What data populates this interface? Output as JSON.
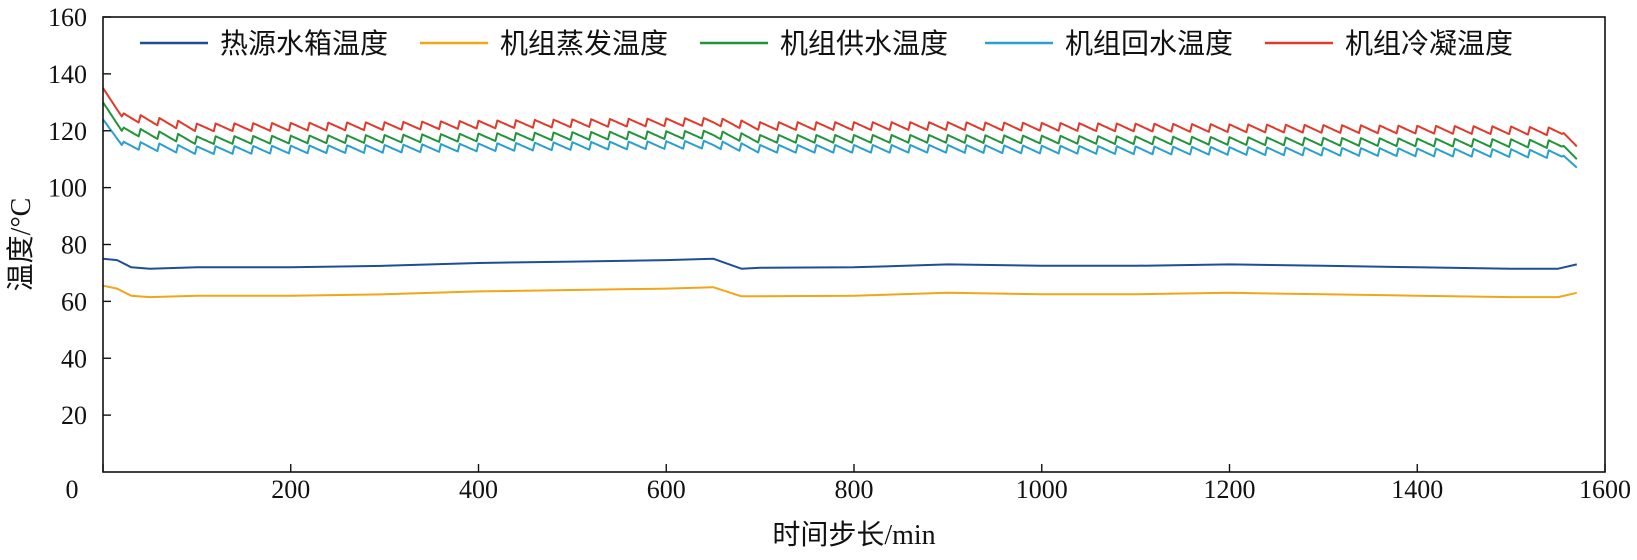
{
  "chart_data": {
    "type": "line",
    "xlabel": "时间步长/min",
    "ylabel": "温度/°C",
    "xlim": [
      0,
      1600
    ],
    "ylim": [
      0,
      160
    ],
    "xticks": [
      0,
      200,
      400,
      600,
      800,
      1000,
      1200,
      1400,
      1600
    ],
    "yticks": [
      20,
      40,
      60,
      80,
      100,
      120,
      140,
      160
    ],
    "y_zero_label": "0",
    "grid": false,
    "legend": "top",
    "series": [
      {
        "name": "热源水箱温度",
        "color": "#1f4e96",
        "points": [
          [
            0,
            75
          ],
          [
            15,
            74.5
          ],
          [
            30,
            72
          ],
          [
            50,
            71.5
          ],
          [
            100,
            72
          ],
          [
            200,
            72
          ],
          [
            300,
            72.5
          ],
          [
            400,
            73.5
          ],
          [
            500,
            74
          ],
          [
            600,
            74.5
          ],
          [
            650,
            75
          ],
          [
            680,
            71.5
          ],
          [
            700,
            71.8
          ],
          [
            800,
            72
          ],
          [
            900,
            73
          ],
          [
            1000,
            72.5
          ],
          [
            1100,
            72.5
          ],
          [
            1200,
            73
          ],
          [
            1300,
            72.5
          ],
          [
            1400,
            72
          ],
          [
            1500,
            71.5
          ],
          [
            1550,
            71.5
          ],
          [
            1570,
            73
          ]
        ]
      },
      {
        "name": "机组蒸发温度",
        "color": "#f2a516",
        "points": [
          [
            0,
            65.5
          ],
          [
            15,
            64.5
          ],
          [
            30,
            62
          ],
          [
            50,
            61.5
          ],
          [
            100,
            62
          ],
          [
            200,
            62
          ],
          [
            300,
            62.5
          ],
          [
            400,
            63.5
          ],
          [
            500,
            64
          ],
          [
            600,
            64.5
          ],
          [
            650,
            65
          ],
          [
            680,
            61.8
          ],
          [
            700,
            61.8
          ],
          [
            800,
            62
          ],
          [
            900,
            63
          ],
          [
            1000,
            62.5
          ],
          [
            1100,
            62.5
          ],
          [
            1200,
            63
          ],
          [
            1300,
            62.5
          ],
          [
            1400,
            62
          ],
          [
            1500,
            61.5
          ],
          [
            1550,
            61.5
          ],
          [
            1570,
            63
          ]
        ]
      },
      {
        "name": "机组供水温度",
        "color": "#22943a",
        "base": [
          [
            0,
            130
          ],
          [
            20,
            120
          ],
          [
            100,
            116.5
          ],
          [
            300,
            117
          ],
          [
            500,
            118
          ],
          [
            650,
            118.5
          ],
          [
            700,
            117
          ],
          [
            900,
            117
          ],
          [
            1100,
            116.5
          ],
          [
            1300,
            116
          ],
          [
            1500,
            115.5
          ],
          [
            1555,
            115
          ],
          [
            1570,
            110
          ]
        ],
        "amplitude": 3,
        "period": 20
      },
      {
        "name": "机组回水温度",
        "color": "#2a9fd0",
        "base": [
          [
            0,
            124
          ],
          [
            20,
            115
          ],
          [
            100,
            113
          ],
          [
            300,
            113.5
          ],
          [
            500,
            114.5
          ],
          [
            650,
            115
          ],
          [
            700,
            113.5
          ],
          [
            900,
            113.5
          ],
          [
            1100,
            113
          ],
          [
            1300,
            112.5
          ],
          [
            1500,
            112
          ],
          [
            1555,
            111.5
          ],
          [
            1570,
            107
          ]
        ],
        "amplitude": 3,
        "period": 20
      },
      {
        "name": "机组冷凝温度",
        "color": "#e03a2c",
        "base": [
          [
            0,
            135
          ],
          [
            20,
            125
          ],
          [
            100,
            121
          ],
          [
            300,
            121.5
          ],
          [
            500,
            122.5
          ],
          [
            650,
            123
          ],
          [
            700,
            121.5
          ],
          [
            900,
            121.5
          ],
          [
            1100,
            121
          ],
          [
            1300,
            120.5
          ],
          [
            1500,
            120
          ],
          [
            1555,
            119.5
          ],
          [
            1570,
            114.5
          ]
        ],
        "amplitude": 3,
        "period": 20
      }
    ]
  }
}
